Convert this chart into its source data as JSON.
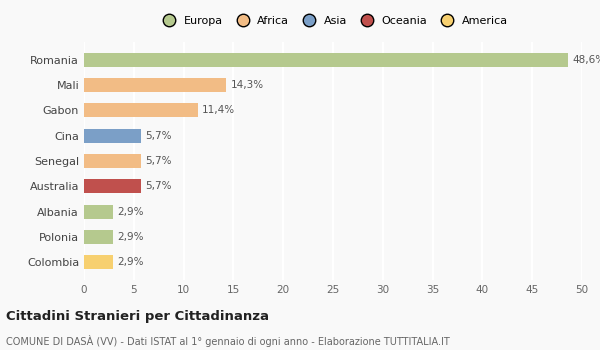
{
  "countries": [
    "Romania",
    "Mali",
    "Gabon",
    "Cina",
    "Senegal",
    "Australia",
    "Albania",
    "Polonia",
    "Colombia"
  ],
  "values": [
    48.6,
    14.3,
    11.4,
    5.7,
    5.7,
    5.7,
    2.9,
    2.9,
    2.9
  ],
  "labels": [
    "48,6%",
    "14,3%",
    "11,4%",
    "5,7%",
    "5,7%",
    "5,7%",
    "2,9%",
    "2,9%",
    "2,9%"
  ],
  "colors": [
    "#b5c98e",
    "#f2bc85",
    "#f2bc85",
    "#7b9fc7",
    "#f2bc85",
    "#c0504d",
    "#b5c98e",
    "#b5c98e",
    "#f7d070"
  ],
  "continents": [
    "Europa",
    "Africa",
    "Asia",
    "Oceania",
    "America"
  ],
  "legend_colors": [
    "#b5c98e",
    "#f2bc85",
    "#7b9fc7",
    "#c0504d",
    "#f7d070"
  ],
  "xlim": [
    0,
    50
  ],
  "xticks": [
    0,
    5,
    10,
    15,
    20,
    25,
    30,
    35,
    40,
    45,
    50
  ],
  "title": "Cittadini Stranieri per Cittadinanza",
  "subtitle": "COMUNE DI DASÀ (VV) - Dati ISTAT al 1° gennaio di ogni anno - Elaborazione TUTTITALIA.IT",
  "background_color": "#f9f9f9",
  "grid_color": "#ffffff",
  "bar_height": 0.55
}
